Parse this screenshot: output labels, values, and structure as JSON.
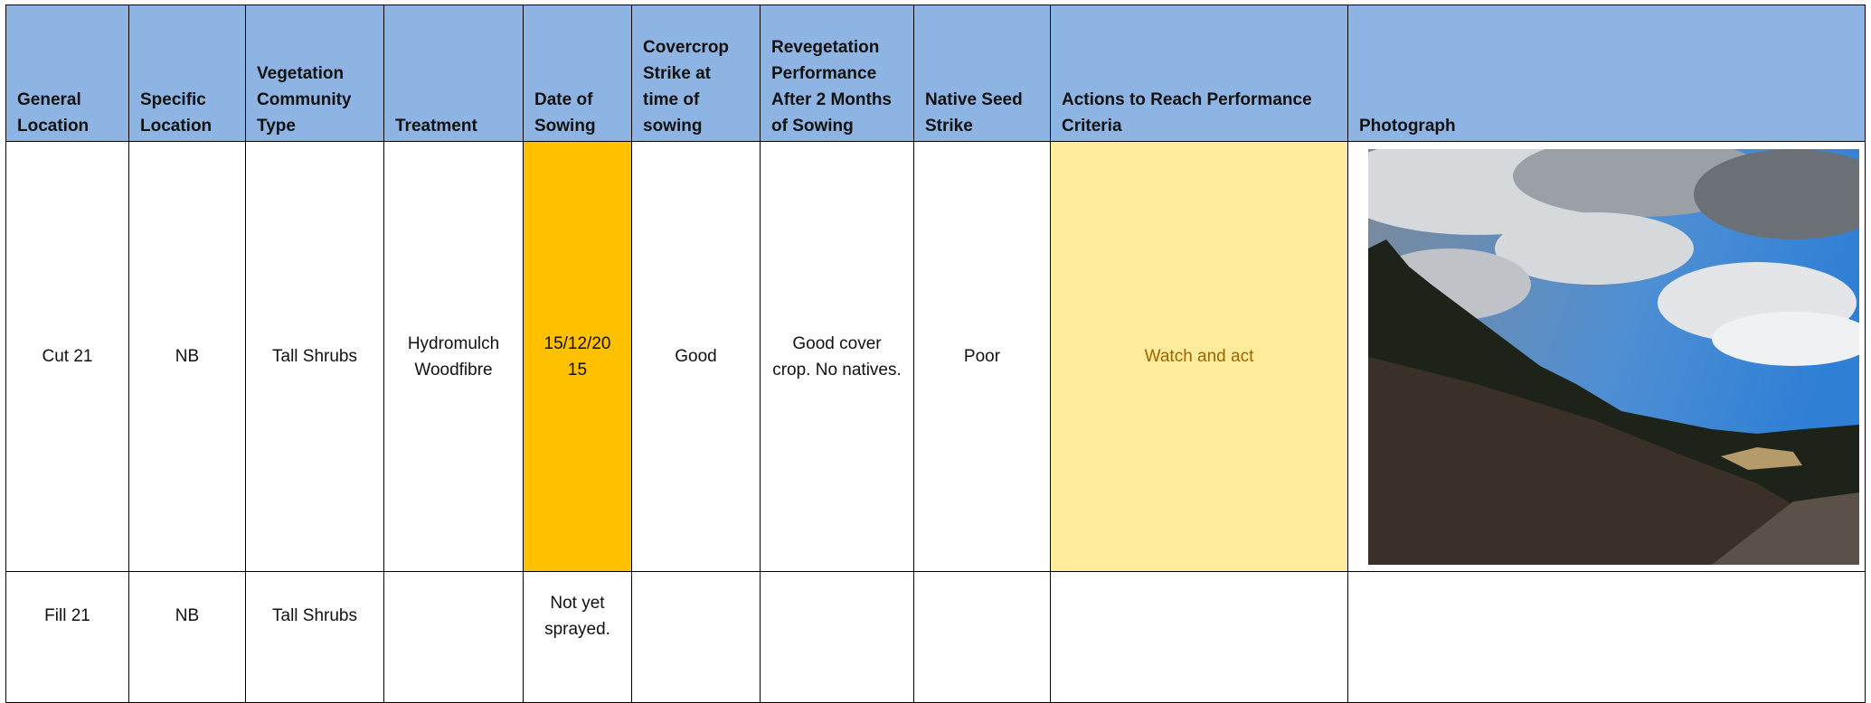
{
  "table": {
    "headers": [
      "General Location",
      "Specific Location",
      "Vegetation Community Type",
      "Treatment",
      "Date of Sowing",
      "Covercrop Strike at time of sowing",
      "Revegetation Performance After 2 Months of Sowing",
      "Native Seed Strike",
      "Actions to Reach Performance Criteria",
      "Photograph"
    ],
    "rows": [
      {
        "general_location": "Cut 21",
        "specific_location": "NB",
        "community": "Tall Shrubs",
        "treatment": "Hydromulch Woodfibre",
        "date": "15/12/2015",
        "covercrop": "Good",
        "performance": "Good cover crop. No natives.",
        "native_strike": "Poor",
        "actions": "Watch and act"
      },
      {
        "general_location": "Fill 21",
        "specific_location": "NB",
        "community": "Tall Shrubs",
        "date": "Not yet sprayed."
      }
    ]
  }
}
